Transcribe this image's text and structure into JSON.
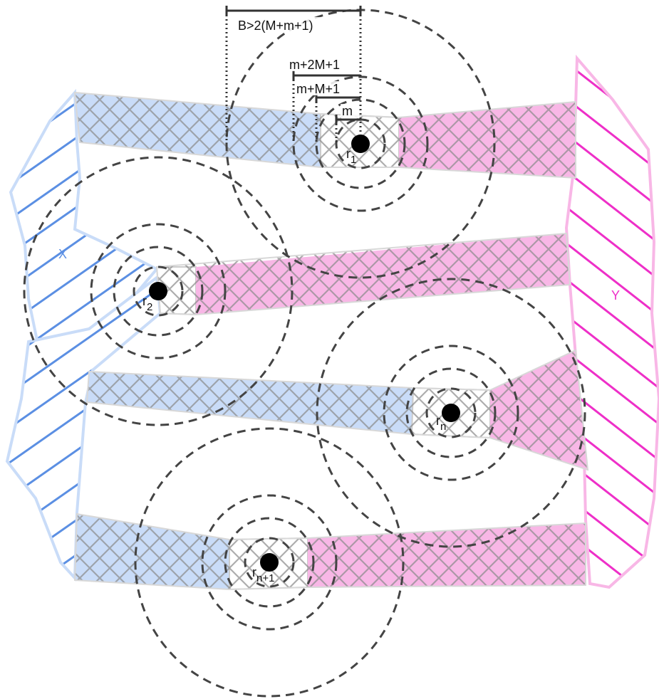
{
  "colors": {
    "blue_fill": "#c9dcf8",
    "blue_hatch": "#5b8fe3",
    "pink_fill": "#f8b7e6",
    "pink_hatch": "#ee2fc8",
    "circle_stroke": "#444444",
    "crosshatch": "#9a9a9a"
  },
  "regions": {
    "x_label": "X",
    "y_label": "Y"
  },
  "measurements": {
    "b_label": "B>2(M+m+1)",
    "m2m_label": "m+2M+1",
    "mm_label": "m+M+1",
    "m_label": "m"
  },
  "robots": [
    {
      "main": "r",
      "sub": "1"
    },
    {
      "main": "r",
      "sub": "2"
    },
    {
      "main": "r",
      "sub": "n"
    },
    {
      "main": "r",
      "sub": "n+1"
    }
  ]
}
